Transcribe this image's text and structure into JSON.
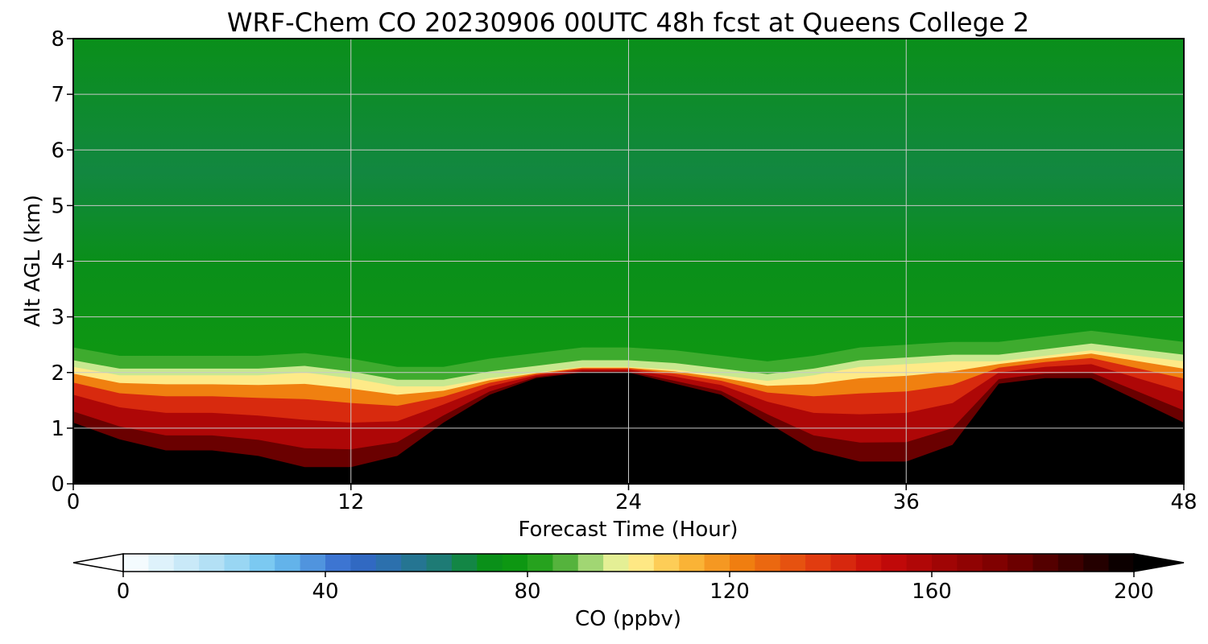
{
  "chart_data": {
    "type": "heatmap",
    "title": "WRF-Chem CO  20230906 00UTC 48h fcst at Queens College 2",
    "xlabel": "Forecast Time (Hour)",
    "ylabel": "Alt AGL (km)",
    "xlim": [
      0,
      48
    ],
    "ylim": [
      0,
      8
    ],
    "x_ticks": [
      0,
      12,
      24,
      36,
      48
    ],
    "y_ticks": [
      0,
      1,
      2,
      3,
      4,
      5,
      6,
      7,
      8
    ],
    "grid": true,
    "colorbar": {
      "label": "CO  (ppbv)",
      "range": [
        0,
        200
      ],
      "ticks": [
        0,
        40,
        80,
        120,
        160,
        200
      ],
      "extend": "both",
      "orientation": "horizontal"
    },
    "profile_hours": [
      0,
      2,
      4,
      6,
      8,
      10,
      12,
      14,
      16,
      18,
      20,
      22,
      24,
      26,
      28,
      30,
      32,
      34,
      36,
      38,
      40,
      42,
      44,
      46,
      48
    ],
    "black_top_km": [
      1.1,
      0.8,
      0.6,
      0.6,
      0.5,
      0.3,
      0.3,
      0.5,
      1.1,
      1.6,
      1.9,
      2.0,
      2.0,
      1.8,
      1.6,
      1.1,
      0.6,
      0.4,
      0.4,
      0.7,
      1.8,
      1.9,
      1.9,
      1.5,
      1.1
    ],
    "boundary_layer_top_km": [
      2.1,
      1.95,
      1.95,
      1.95,
      1.95,
      2.0,
      1.9,
      1.75,
      1.75,
      1.9,
      2.0,
      2.1,
      2.1,
      2.05,
      1.95,
      1.85,
      1.95,
      2.1,
      2.15,
      2.2,
      2.2,
      2.3,
      2.4,
      2.3,
      2.2
    ],
    "free_troposphere_co_ppbv": {
      "at_3km": 78,
      "at_4_5km": 72,
      "at_6km": 68,
      "at_8km": 72
    },
    "peak_plume_ppbv": 96
  },
  "colors": {
    "colormap": [
      [
        0,
        "#ffffff"
      ],
      [
        20,
        "#a8dcf4"
      ],
      [
        30,
        "#6cc2f0"
      ],
      [
        45,
        "#3366cc"
      ],
      [
        52,
        "#2d6fb0"
      ],
      [
        62,
        "#1f7a7a"
      ],
      [
        72,
        "#0a8f1a"
      ],
      [
        80,
        "#0f9a0f"
      ],
      [
        88,
        "#5ab540"
      ],
      [
        95,
        "#c8e890"
      ],
      [
        100,
        "#fff59a"
      ],
      [
        110,
        "#fcc040"
      ],
      [
        122,
        "#f08010"
      ],
      [
        138,
        "#e03a10"
      ],
      [
        150,
        "#c80a0a"
      ],
      [
        175,
        "#780000"
      ],
      [
        200,
        "#000000"
      ]
    ],
    "grid": "#c8c8c8"
  }
}
